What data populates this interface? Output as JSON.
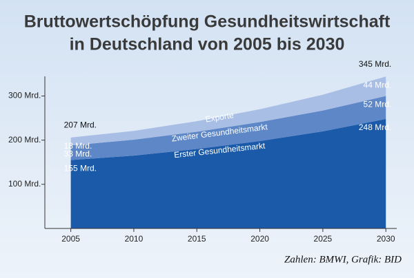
{
  "chart_data": {
    "type": "stacked_area",
    "title": [
      "Bruttowertschöpfung Gesundheitswirtschaft",
      "in Deutschland von 2005 bis 2030"
    ],
    "x": [
      2005,
      2010,
      2015,
      2020,
      2025,
      2030
    ],
    "series": [
      {
        "name": "Erster Gesundheitsmarkt",
        "color": "#1b5aa9",
        "values": [
          155,
          165,
          180,
          198,
          220,
          248
        ],
        "value_labels": [
          "155 Mrd.",
          null,
          null,
          null,
          null,
          "248 Mrd."
        ]
      },
      {
        "name": "Zweiter Gesundheitsmarkt",
        "color": "#5e87c7",
        "values": [
          33,
          36,
          39,
          43,
          47,
          52
        ],
        "value_labels": [
          "33 Mrd.",
          null,
          null,
          null,
          null,
          "52 Mrd."
        ]
      },
      {
        "name": "Exporte",
        "color": "#a9bee4",
        "values": [
          18,
          20,
          24,
          29,
          36,
          44
        ],
        "value_labels": [
          "18 Mrd.",
          null,
          null,
          null,
          null,
          "44 Mrd."
        ]
      }
    ],
    "totals": [
      {
        "x": 2005,
        "value": 207,
        "label": "207 Mrd."
      },
      {
        "x": 2030,
        "value": 345,
        "label": "345 Mrd."
      }
    ],
    "xlim": [
      2004.2,
      2030.7
    ],
    "xticks": [
      2005,
      2010,
      2015,
      2020,
      2025,
      2030
    ],
    "ylim": [
      0,
      360
    ],
    "yticks": [
      {
        "value": 100,
        "label": "100 Mrd."
      },
      {
        "value": 200,
        "label": "200 Mrd."
      },
      {
        "value": 300,
        "label": "300 Mrd."
      }
    ],
    "source": "Zahlen: BMWI, Grafik: BID"
  }
}
